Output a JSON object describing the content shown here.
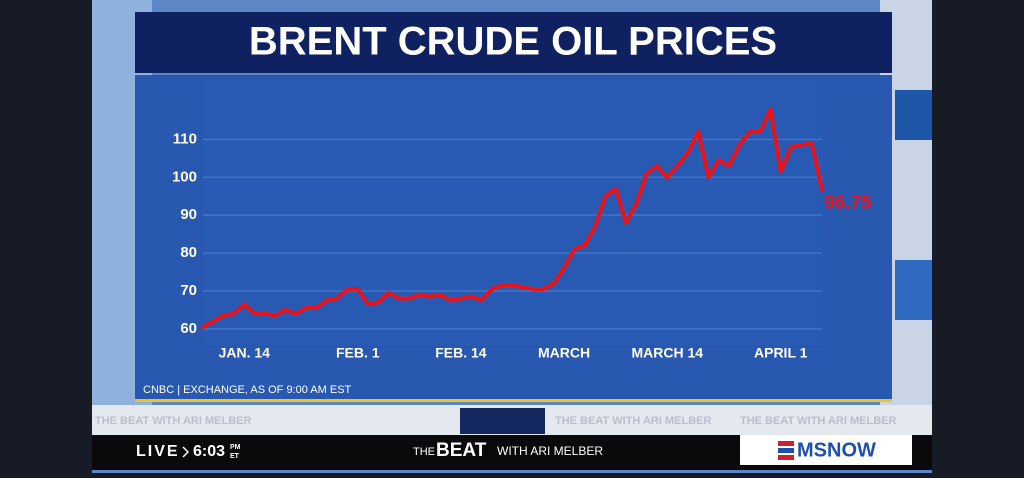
{
  "chart_data": {
    "type": "line",
    "title": "BRENT CRUDE OIL PRICES",
    "categories": [
      null,
      null,
      null,
      null,
      "JAN. 14",
      null,
      null,
      null,
      null,
      null,
      null,
      null,
      null,
      null,
      null,
      "FEB. 1",
      null,
      null,
      null,
      null,
      null,
      null,
      null,
      null,
      null,
      "FEB. 14",
      null,
      null,
      null,
      null,
      null,
      null,
      null,
      null,
      null,
      "MARCH",
      null,
      null,
      null,
      null,
      null,
      null,
      null,
      null,
      null,
      "MARCH 14",
      null,
      null,
      null,
      null,
      null,
      null,
      null,
      null,
      null,
      null,
      "APRIL 1",
      null,
      null,
      null,
      null
    ],
    "series": [
      {
        "color": "#e8141c",
        "values": [
          60.5,
          62,
          63.5,
          64,
          66.5,
          64,
          64,
          63.5,
          65,
          64,
          65.5,
          65.5,
          67.5,
          68,
          70.5,
          70.5,
          66.5,
          67,
          69.5,
          68,
          68,
          69,
          68.5,
          69,
          67.5,
          68,
          68.5,
          67.5,
          70.5,
          71.5,
          71.5,
          71,
          70.5,
          70.5,
          72,
          76,
          81,
          82,
          87,
          95,
          97,
          88,
          93,
          101,
          103,
          100,
          103,
          106.5,
          112,
          100,
          104.5,
          103,
          108.5,
          112,
          112,
          118,
          101.5,
          108,
          108.5,
          109,
          96.75
        ]
      }
    ],
    "ylim": [
      56,
      127
    ],
    "yticks": [
      60,
      70,
      80,
      90,
      100,
      110
    ],
    "grid": true,
    "source": "CNBC | EXCHANGE, AS OF 9:00 AM EST"
  },
  "ticker": "THE BEAT WITH ARI MELBER",
  "lower_third": {
    "live": "LIVE",
    "time": "6:03",
    "time_ampm": "PM",
    "time_zone": "ET",
    "show": "THE",
    "show_bold": "BEAT",
    "show_host": "WITH ARI MELBER",
    "network": "MSNOW"
  }
}
